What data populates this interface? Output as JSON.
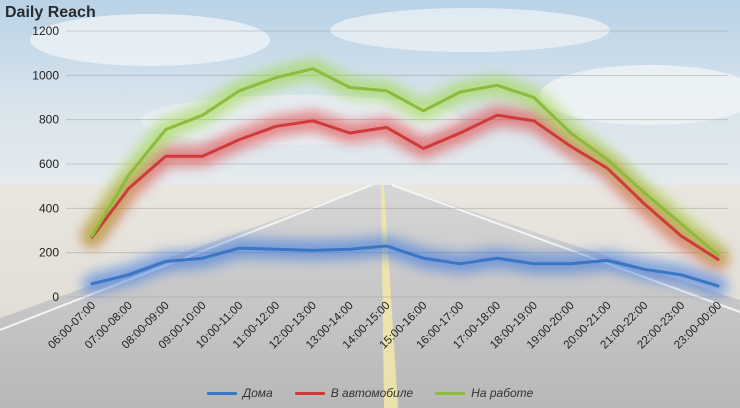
{
  "chart_data": {
    "type": "line",
    "title": "Daily Reach",
    "categories": [
      "06:00-07:00",
      "07:00-08:00",
      "08:00-09:00",
      "09:00-10:00",
      "10:00-11:00",
      "11:00-12:00",
      "12:00-13:00",
      "13:00-14:00",
      "14:00-15:00",
      "15:00-16:00",
      "16:00-17:00",
      "17:00-18:00",
      "18:00-19:00",
      "19:00-20:00",
      "20:00-21:00",
      "21:00-22:00",
      "22:00-23:00",
      "23:00-00:00"
    ],
    "ylim": [
      0,
      1200
    ],
    "yticks": [
      "0",
      "200",
      "400",
      "600",
      "800",
      "1000",
      "1200"
    ],
    "grid": true,
    "legend_position": "bottom",
    "series": [
      {
        "name": "Дома",
        "color": "#3a76c4",
        "glow": "#2f6fe0",
        "values": [
          60,
          100,
          160,
          175,
          220,
          215,
          210,
          215,
          230,
          175,
          150,
          175,
          150,
          150,
          165,
          125,
          100,
          50
        ]
      },
      {
        "name": "В автомобиле",
        "color": "#cf3b3b",
        "glow": "#e03030",
        "values": [
          270,
          490,
          635,
          635,
          710,
          770,
          795,
          740,
          765,
          670,
          740,
          820,
          795,
          680,
          580,
          420,
          275,
          170
        ]
      },
      {
        "name": "На работе",
        "color": "#8dbb3e",
        "glow": "#9ad636",
        "values": [
          275,
          550,
          755,
          820,
          930,
          990,
          1030,
          945,
          930,
          840,
          925,
          955,
          900,
          740,
          620,
          470,
          330,
          190
        ]
      }
    ]
  }
}
